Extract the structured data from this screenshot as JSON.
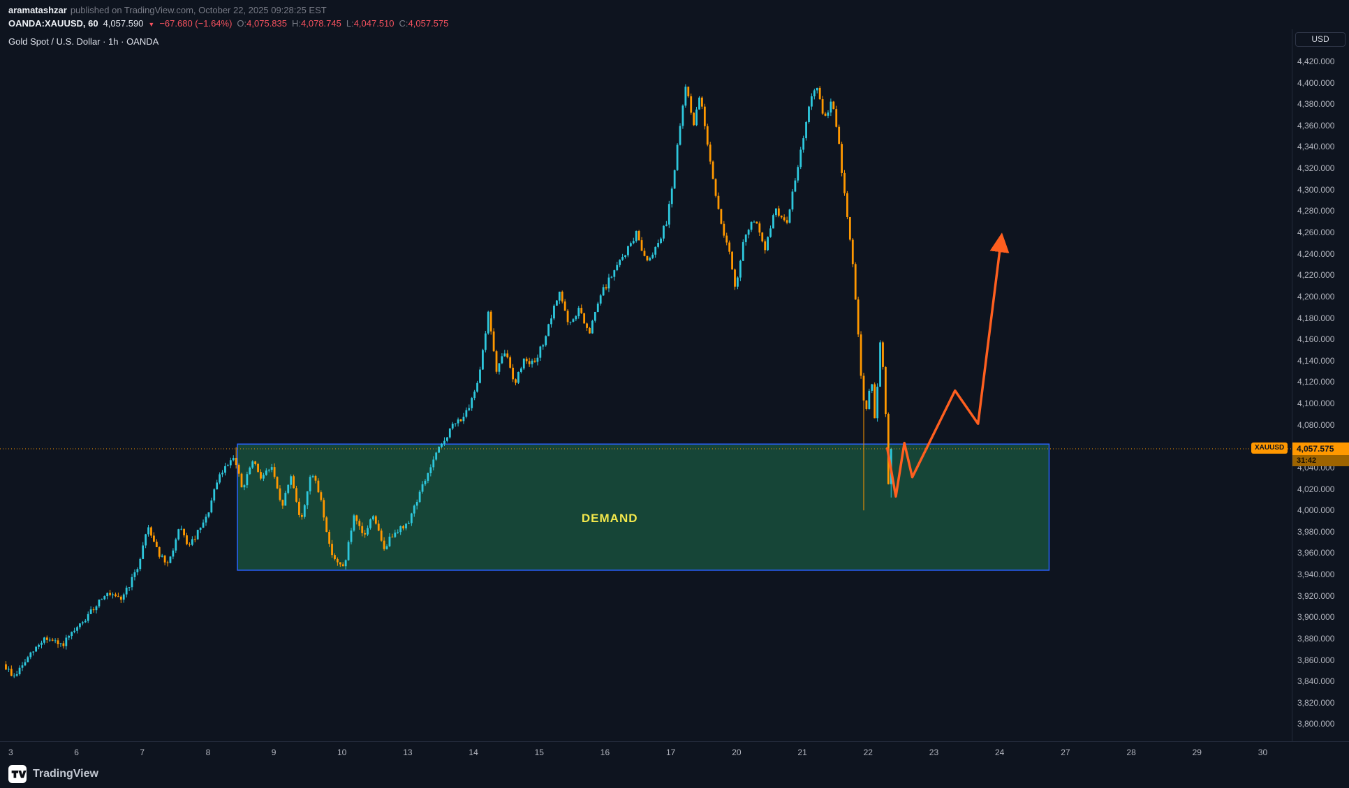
{
  "header": {
    "byline": {
      "author": "aramatashzar",
      "text": "published on TradingView.com, October 22, 2025 09:28:25 EST"
    },
    "symbol_line": {
      "symbol": "OANDA:XAUUSD, 60",
      "last_price": "4,057.590",
      "change": "−67.680 (−1.64%)",
      "ohlc": [
        {
          "label": "O:",
          "value": "4,075.835"
        },
        {
          "label": "H:",
          "value": "4,078.745"
        },
        {
          "label": "L:",
          "value": "4,047.510"
        },
        {
          "label": "C:",
          "value": "4,057.575"
        }
      ]
    }
  },
  "chart": {
    "legend": "Gold Spot / U.S. Dollar · 1h · OANDA",
    "currency_button": "USD",
    "price_flag": {
      "tag": "XAUUSD",
      "price": "4,057.575",
      "countdown": "31:42"
    }
  },
  "icons": {
    "down_triangle": "▼"
  },
  "footer": {
    "logo_text": "TradingView"
  },
  "chart_data": {
    "type": "candlestick",
    "title": "Gold Spot / U.S. Dollar · 1h · OANDA",
    "symbol": "XAUUSD",
    "exchange": "OANDA",
    "interval": "1h",
    "last_price": 4057.575,
    "y_axis": {
      "min": 3784,
      "max": 4450,
      "tick_start": 3800,
      "tick_end": 4420,
      "tick_step": 20,
      "decimals": 3
    },
    "x_axis": {
      "day_labels": [
        "3",
        "6",
        "7",
        "8",
        "9",
        "10",
        "13",
        "14",
        "15",
        "16",
        "17",
        "20",
        "21",
        "22",
        "23",
        "24",
        "27",
        "28",
        "29",
        "30"
      ]
    },
    "t_start": -0.08,
    "t_end": 13.4,
    "price_waypoints": [
      [
        -0.08,
        3856
      ],
      [
        0.08,
        3844
      ],
      [
        0.3,
        3862
      ],
      [
        0.55,
        3881
      ],
      [
        0.8,
        3873
      ],
      [
        1.0,
        3886
      ],
      [
        1.2,
        3900
      ],
      [
        1.45,
        3922
      ],
      [
        1.7,
        3916
      ],
      [
        1.95,
        3943
      ],
      [
        2.12,
        3986
      ],
      [
        2.3,
        3958
      ],
      [
        2.42,
        3948
      ],
      [
        2.6,
        3983
      ],
      [
        2.75,
        3966
      ],
      [
        3.0,
        3991
      ],
      [
        3.2,
        4031
      ],
      [
        3.42,
        4052
      ],
      [
        3.56,
        4018
      ],
      [
        3.7,
        4046
      ],
      [
        3.85,
        4031
      ],
      [
        4.0,
        4041
      ],
      [
        4.15,
        4002
      ],
      [
        4.3,
        4033
      ],
      [
        4.45,
        3988
      ],
      [
        4.6,
        4037
      ],
      [
        4.75,
        4011
      ],
      [
        4.88,
        3966
      ],
      [
        5.02,
        3948
      ],
      [
        5.1,
        3947
      ],
      [
        5.25,
        3993
      ],
      [
        5.4,
        3975
      ],
      [
        5.55,
        3997
      ],
      [
        5.7,
        3963
      ],
      [
        5.88,
        3982
      ],
      [
        6.05,
        3985
      ],
      [
        6.25,
        4016
      ],
      [
        6.5,
        4052
      ],
      [
        6.75,
        4079
      ],
      [
        7.0,
        4093
      ],
      [
        7.15,
        4126
      ],
      [
        7.3,
        4186
      ],
      [
        7.42,
        4129
      ],
      [
        7.55,
        4149
      ],
      [
        7.7,
        4119
      ],
      [
        7.85,
        4143
      ],
      [
        8.0,
        4136
      ],
      [
        8.2,
        4169
      ],
      [
        8.38,
        4206
      ],
      [
        8.52,
        4171
      ],
      [
        8.68,
        4189
      ],
      [
        8.82,
        4163
      ],
      [
        9.0,
        4201
      ],
      [
        9.2,
        4223
      ],
      [
        9.4,
        4243
      ],
      [
        9.55,
        4259
      ],
      [
        9.7,
        4233
      ],
      [
        9.85,
        4247
      ],
      [
        10.0,
        4269
      ],
      [
        10.12,
        4316
      ],
      [
        10.3,
        4399
      ],
      [
        10.42,
        4361
      ],
      [
        10.52,
        4389
      ],
      [
        10.68,
        4323
      ],
      [
        10.82,
        4271
      ],
      [
        10.95,
        4245
      ],
      [
        11.05,
        4205
      ],
      [
        11.2,
        4259
      ],
      [
        11.35,
        4273
      ],
      [
        11.5,
        4241
      ],
      [
        11.65,
        4283
      ],
      [
        11.82,
        4267
      ],
      [
        12.0,
        4319
      ],
      [
        12.15,
        4373
      ],
      [
        12.28,
        4399
      ],
      [
        12.4,
        4363
      ],
      [
        12.52,
        4386
      ],
      [
        12.62,
        4345
      ],
      [
        12.72,
        4291
      ],
      [
        12.82,
        4240
      ],
      [
        12.9,
        4184
      ],
      [
        12.98,
        4110
      ],
      [
        13.05,
        4091
      ],
      [
        13.12,
        4126
      ],
      [
        13.18,
        4081
      ],
      [
        13.26,
        4161
      ],
      [
        13.32,
        4116
      ],
      [
        13.38,
        4021
      ],
      [
        13.4,
        4057.575
      ]
    ],
    "wick_overrides": [
      {
        "t": 3.42,
        "high": 4059
      },
      {
        "t": 12.98,
        "low": 4000
      },
      {
        "t": 13.38,
        "low": 4012
      }
    ],
    "demand_zone": {
      "t_start": 3.44,
      "t_end": 15.78,
      "price_top": 4062,
      "price_bottom": 3944,
      "label": "DEMAND",
      "label_t": 9.1,
      "label_price": 3989
    },
    "arrow": {
      "points": [
        [
          13.32,
          4058
        ],
        [
          13.45,
          4013
        ],
        [
          13.58,
          4063
        ],
        [
          13.7,
          4031
        ],
        [
          14.35,
          4112
        ],
        [
          14.7,
          4081
        ],
        [
          15.05,
          4253
        ]
      ]
    },
    "colors": {
      "up": "#2ec8dd",
      "down": "#ff9800",
      "arrow": "#ff5f1f",
      "last_price_line": "#ff9800",
      "zone_fill": "rgba(34,139,87,0.42)",
      "zone_border": "#2962ff",
      "zone_label": "#f3e84c",
      "axis_text": "#b2b5be",
      "negative": "#f7525f",
      "flag_bg": "#ff9800",
      "background": "#0e141f"
    }
  }
}
